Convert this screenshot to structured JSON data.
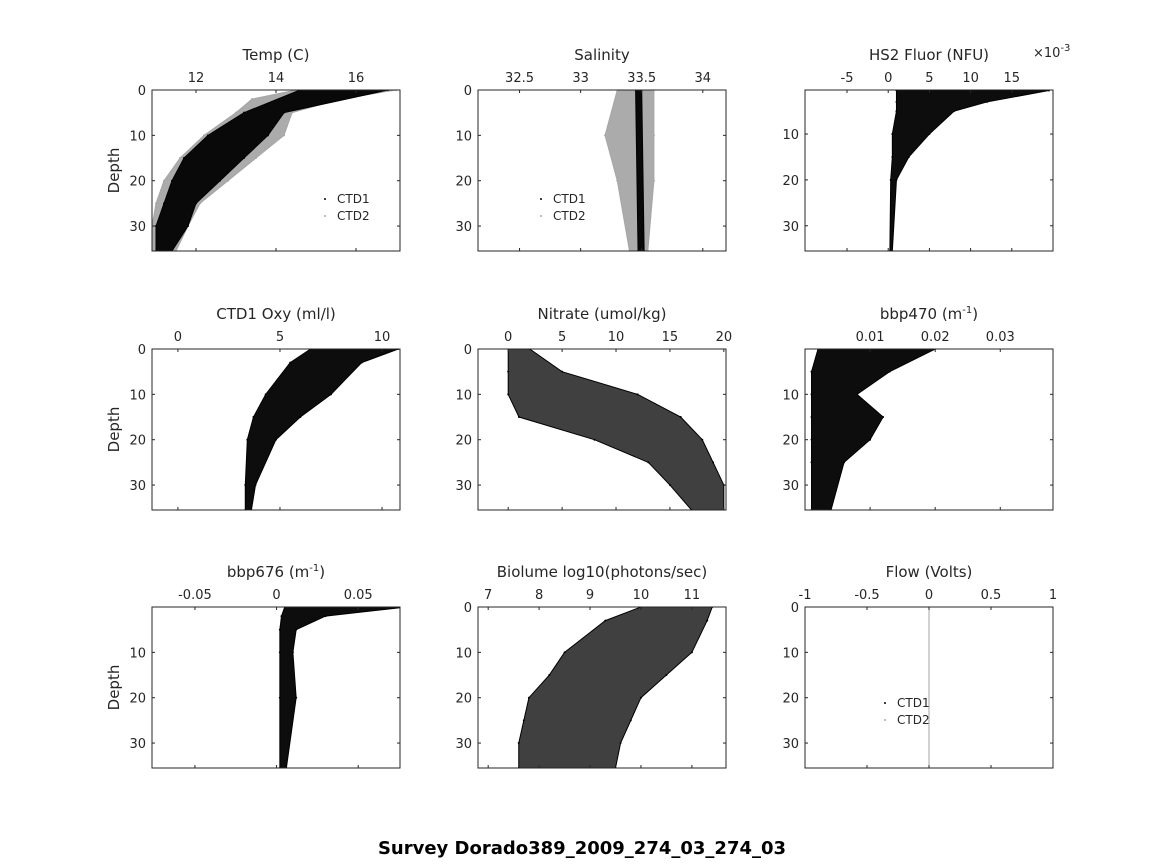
{
  "figure_title": "Survey Dorado389_2009_274_03_274_03",
  "chart_data": [
    {
      "type": "scatter",
      "title": "Temp (C)",
      "ylabel": "Depth",
      "xlim": [
        10.9,
        17.1
      ],
      "ylim": [
        0,
        35.5
      ],
      "xticks": [
        12,
        14,
        16
      ],
      "xticklabels": [
        "12",
        "14",
        "16"
      ],
      "yticks": [
        0,
        10,
        20,
        30
      ],
      "yticklabels": [
        "0",
        "10",
        "20",
        "30"
      ],
      "legend": [
        "CTD1",
        "CTD2"
      ],
      "legend_position": "lower-right",
      "series": [
        {
          "name": "CTD2",
          "color": "#a6a6a6",
          "envelope": [
            [
              0,
              14.5,
              17
            ],
            [
              2,
              13.4,
              15.6
            ],
            [
              5,
              13,
              14.4
            ],
            [
              10,
              12.2,
              14.2
            ],
            [
              15,
              11.6,
              13.5
            ],
            [
              20,
              11.2,
              12.8
            ],
            [
              25,
              11,
              12.1
            ],
            [
              30,
              10.9,
              11.8
            ],
            [
              35.5,
              10.9,
              11.5
            ]
          ]
        },
        {
          "name": "CTD1",
          "color": "#000000",
          "envelope": [
            [
              0,
              14.6,
              16.8
            ],
            [
              5,
              13.2,
              14.2
            ],
            [
              10,
              12.3,
              13.8
            ],
            [
              15,
              11.7,
              13.2
            ],
            [
              20,
              11.4,
              12.6
            ],
            [
              25,
              11.2,
              12
            ],
            [
              30,
              11,
              11.8
            ],
            [
              35.5,
              11,
              11.4
            ]
          ]
        }
      ]
    },
    {
      "type": "scatter",
      "title": "Salinity",
      "ylabel": "",
      "xlim": [
        32.16,
        34.19
      ],
      "ylim": [
        0,
        35.5
      ],
      "xticks": [
        32.5,
        33,
        33.5,
        34
      ],
      "xticklabels": [
        "32.5",
        "33",
        "33.5",
        "34"
      ],
      "yticks": [
        0,
        10,
        20,
        30
      ],
      "yticklabels": [
        "0",
        "10",
        "20",
        "30"
      ],
      "legend": [
        "CTD1",
        "CTD2"
      ],
      "legend_position": "lower-left",
      "series": [
        {
          "name": "CTD2",
          "color": "#a6a6a6",
          "envelope": [
            [
              0,
              33.3,
              33.6
            ],
            [
              10,
              33.2,
              33.6
            ],
            [
              20,
              33.3,
              33.6
            ],
            [
              35.5,
              33.4,
              33.55
            ]
          ]
        },
        {
          "name": "CTD1",
          "color": "#000000",
          "envelope": [
            [
              0,
              33.45,
              33.5
            ],
            [
              35.5,
              33.47,
              33.52
            ]
          ]
        }
      ]
    },
    {
      "type": "scatter",
      "title": "HS2 Fluor (NFU)",
      "multiplier": "×10",
      "multiplier_exp": "-3",
      "ylabel": "",
      "xlim": [
        -10.1,
        20
      ],
      "ylim": [
        0.4,
        35.5
      ],
      "xticks": [
        -5,
        0,
        5,
        10,
        15
      ],
      "xticklabels": [
        "-5",
        "0",
        "5",
        "10",
        "15"
      ],
      "yticks": [
        10,
        20,
        30
      ],
      "yticklabels": [
        "10",
        "20",
        "30"
      ],
      "series": [
        {
          "name": "CTD1",
          "color": "#000000",
          "envelope": [
            [
              0.5,
              1,
              19.5
            ],
            [
              3,
              1,
              12
            ],
            [
              5,
              1,
              8
            ],
            [
              10,
              0.5,
              5
            ],
            [
              15,
              0.5,
              2.5
            ],
            [
              20,
              0.3,
              1
            ],
            [
              35.5,
              0.2,
              0.5
            ]
          ]
        }
      ]
    },
    {
      "type": "scatter",
      "title": "CTD1 Oxy (ml/l)",
      "ylabel": "Depth",
      "xlim": [
        -1.27,
        10.88
      ],
      "ylim": [
        0,
        35.5
      ],
      "xticks": [
        0,
        5,
        10
      ],
      "xticklabels": [
        "0",
        "5",
        "10"
      ],
      "yticks": [
        0,
        10,
        20,
        30
      ],
      "yticklabels": [
        "0",
        "10",
        "20",
        "30"
      ],
      "series": [
        {
          "name": "CTD1",
          "color": "#000000",
          "envelope": [
            [
              0,
              6.5,
              10.8
            ],
            [
              3,
              5.5,
              9
            ],
            [
              10,
              4.3,
              7.5
            ],
            [
              15,
              3.7,
              6
            ],
            [
              20,
              3.4,
              4.8
            ],
            [
              30,
              3.3,
              3.8
            ],
            [
              35.5,
              3.3,
              3.6
            ]
          ]
        }
      ]
    },
    {
      "type": "scatter",
      "title": "Nitrate (umol/kg)",
      "ylabel": "",
      "xlim": [
        -2.8,
        20.2
      ],
      "ylim": [
        0,
        35.5
      ],
      "xticks": [
        0,
        5,
        10,
        15,
        20
      ],
      "xticklabels": [
        "0",
        "5",
        "10",
        "15",
        "20"
      ],
      "yticks": [
        0,
        10,
        20,
        30
      ],
      "yticklabels": [
        "0",
        "10",
        "20",
        "30"
      ],
      "series": [
        {
          "name": "CTD1",
          "color": "#000000",
          "envelope": [
            [
              0,
              0,
              2
            ],
            [
              5,
              0,
              5
            ],
            [
              10,
              0,
              12
            ],
            [
              15,
              1,
              16
            ],
            [
              20,
              8,
              18
            ],
            [
              25,
              13,
              19
            ],
            [
              30,
              15,
              20
            ],
            [
              35.5,
              17,
              20
            ]
          ]
        }
      ]
    },
    {
      "type": "scatter",
      "title": "bbp470 (m",
      "title_sup": "-1",
      "title_end": ")",
      "ylabel": "",
      "xlim": [
        0,
        0.0381
      ],
      "ylim": [
        0,
        35.5
      ],
      "xticks": [
        0.01,
        0.02,
        0.03
      ],
      "xticklabels": [
        "0.01",
        "0.02",
        "0.03"
      ],
      "yticks": [
        10,
        20,
        30
      ],
      "yticklabels": [
        "10",
        "20",
        "30"
      ],
      "series": [
        {
          "name": "CTD1",
          "color": "#000000",
          "envelope": [
            [
              0,
              0.002,
              0.02
            ],
            [
              5,
              0.001,
              0.013
            ],
            [
              10,
              0.001,
              0.008
            ],
            [
              15,
              0.001,
              0.012
            ],
            [
              20,
              0.001,
              0.01
            ],
            [
              25,
              0.001,
              0.006
            ],
            [
              35.5,
              0.001,
              0.004
            ]
          ]
        }
      ]
    },
    {
      "type": "scatter",
      "title": "bbp676 (m",
      "title_sup": "-1",
      "title_end": ")",
      "ylabel": "Depth",
      "xlim": [
        -0.0763,
        0.0756
      ],
      "ylim": [
        0,
        35.5
      ],
      "xticks": [
        -0.05,
        0,
        0.05
      ],
      "xticklabels": [
        "-0.05",
        "0",
        "0.05"
      ],
      "yticks": [
        10,
        20,
        30
      ],
      "yticklabels": [
        "10",
        "20",
        "30"
      ],
      "series": [
        {
          "name": "CTD1",
          "color": "#000000",
          "envelope": [
            [
              0,
              0.005,
              0.08
            ],
            [
              2,
              0.003,
              0.03
            ],
            [
              5,
              0.002,
              0.012
            ],
            [
              10,
              0.002,
              0.01
            ],
            [
              20,
              0.002,
              0.012
            ],
            [
              35.5,
              0.002,
              0.006
            ]
          ]
        }
      ]
    },
    {
      "type": "scatter",
      "title": "Biolume log10(photons/sec)",
      "ylabel": "",
      "xlim": [
        6.8,
        11.67
      ],
      "ylim": [
        0,
        35.5
      ],
      "xticks": [
        7,
        8,
        9,
        10,
        11
      ],
      "xticklabels": [
        "7",
        "8",
        "9",
        "10",
        "11"
      ],
      "yticks": [
        0,
        10,
        20,
        30
      ],
      "yticklabels": [
        "0",
        "10",
        "20",
        "30"
      ],
      "series": [
        {
          "name": "CTD1",
          "color": "#000000",
          "envelope": [
            [
              0,
              10,
              11.4
            ],
            [
              3,
              9.3,
              11.3
            ],
            [
              10,
              8.5,
              11
            ],
            [
              15,
              8.2,
              10.5
            ],
            [
              20,
              7.8,
              10
            ],
            [
              25,
              7.7,
              9.8
            ],
            [
              30,
              7.6,
              9.6
            ],
            [
              35.5,
              7.6,
              9.5
            ]
          ]
        }
      ]
    },
    {
      "type": "line",
      "title": "Flow (Volts)",
      "ylabel": "",
      "xlim": [
        -1,
        1
      ],
      "ylim": [
        0,
        35.5
      ],
      "xticks": [
        -1,
        -0.5,
        0,
        0.5,
        1
      ],
      "xticklabels": [
        "-1",
        "-0.5",
        "0",
        "0.5",
        "1"
      ],
      "yticks": [
        0,
        10,
        20,
        30
      ],
      "yticklabels": [
        "0",
        "10",
        "20",
        "30"
      ],
      "legend": [
        "CTD1",
        "CTD2"
      ],
      "legend_position": "lower-middle",
      "series": [
        {
          "name": "CTD2",
          "color": "#a6a6a6",
          "envelope": [
            [
              0,
              0,
              0
            ],
            [
              35.5,
              0,
              0
            ]
          ]
        }
      ]
    }
  ]
}
